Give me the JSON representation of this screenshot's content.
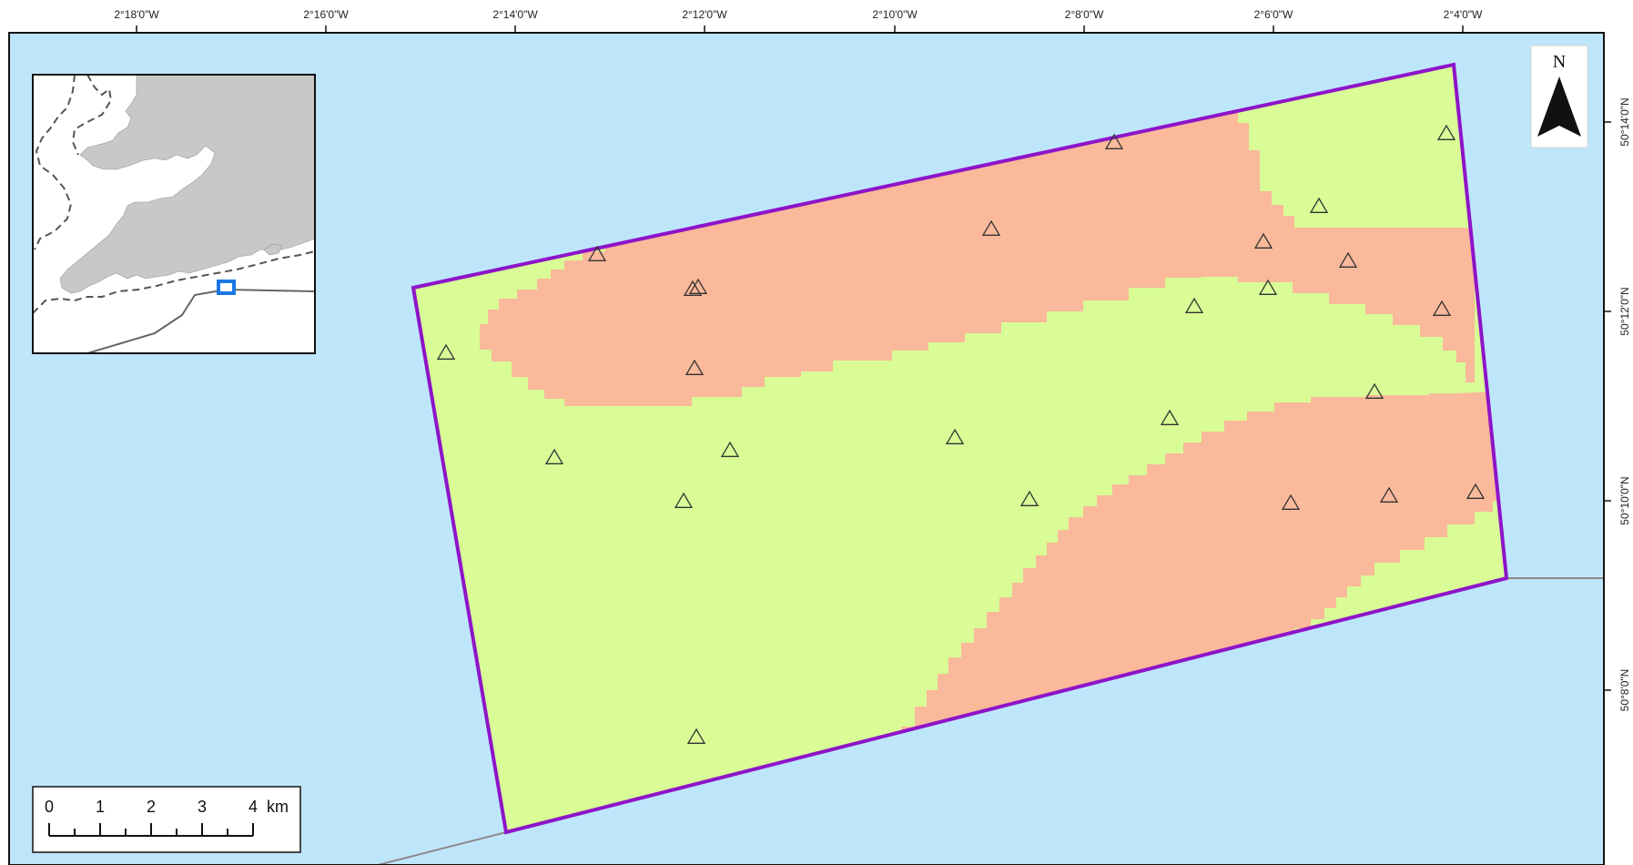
{
  "map": {
    "longitude_labels": [
      "2°18'0\"W",
      "2°16'0\"W",
      "2°14'0\"W",
      "2°12'0\"W",
      "2°10'0\"W",
      "2°8'0\"W",
      "2°6'0\"W",
      "2°4'0\"W"
    ],
    "latitude_labels": [
      "50°14'0\"N",
      "50°12'0\"N",
      "50°10'0\"N",
      "50°8'0\"N"
    ],
    "north_arrow_label": "N",
    "scale_bar": {
      "ticks": [
        "0",
        "1",
        "2",
        "3",
        "4"
      ],
      "unit": "km"
    },
    "colors": {
      "sea": "#bee6fb",
      "class_green": "#d9fc96",
      "class_salmon": "#f9b99a",
      "boundary": "#8e14c8",
      "land": "#c8c8c8",
      "locator_box": "#1a78e6",
      "cable_line": "#8a8a8a"
    },
    "sample_station_count": 28
  }
}
